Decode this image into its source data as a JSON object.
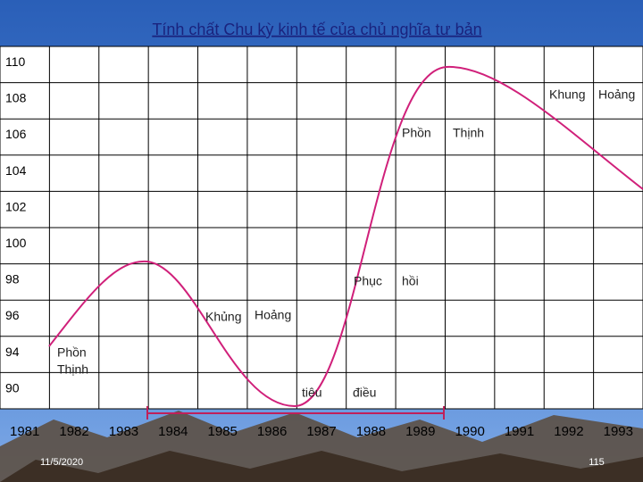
{
  "header": {
    "title": "Tính chất Chu kỳ kinh tế của chủ nghĩa tư bản"
  },
  "y_labels": [
    "110",
    "108",
    "106",
    "104",
    "102",
    "100",
    "98",
    "96",
    "94",
    "90"
  ],
  "x_labels": [
    "1981",
    "1982",
    "1983",
    "1984",
    "1985",
    "1986",
    "1987",
    "1988",
    "1989",
    "1990",
    "1991",
    "1992",
    "1993"
  ],
  "annotations": [
    {
      "words": [
        "Khung",
        "Hoảng"
      ]
    },
    {
      "words": [
        "Phồn",
        "Thịnh"
      ]
    },
    {
      "words": [
        "Phục",
        "hồi"
      ]
    },
    {
      "words": [
        "Khủng",
        "Hoảng"
      ]
    },
    {
      "words": [
        "Phồn",
        "Thịnh"
      ]
    },
    {
      "words": [
        "tiêu",
        "điều"
      ]
    }
  ],
  "footer": {
    "date": "11/5/2020",
    "page": "115"
  }
}
